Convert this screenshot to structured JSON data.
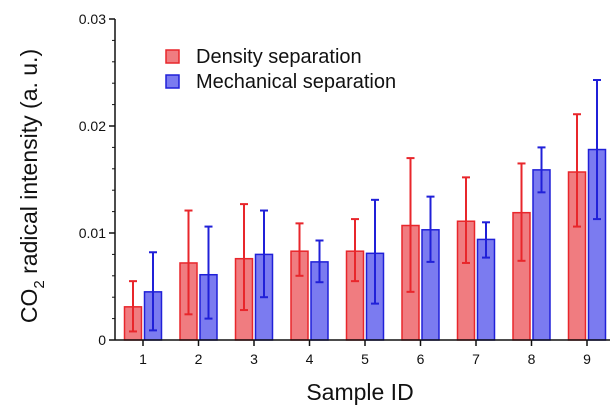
{
  "chart_data": {
    "type": "bar",
    "xlabel": "Sample ID",
    "ylabel": {
      "prefix": "CO",
      "subscript": "2",
      "rest": " radical intensity (a. u.)"
    },
    "ylim": [
      0,
      0.03
    ],
    "yticks": [
      "0",
      "0.01",
      "0.02",
      "0.03"
    ],
    "categories": [
      "1",
      "2",
      "3",
      "4",
      "5",
      "6",
      "7",
      "8",
      "9"
    ],
    "legend_placement": "top-left",
    "grid": false,
    "series": [
      {
        "name": "Density separation",
        "color": "#f07c80",
        "edge_color": "#e8262b",
        "values": [
          0.0031,
          0.0072,
          0.0076,
          0.0083,
          0.0083,
          0.0107,
          0.0111,
          0.0119,
          0.0157
        ],
        "error_high": [
          0.0055,
          0.0121,
          0.0127,
          0.0109,
          0.0113,
          0.017,
          0.0152,
          0.0165,
          0.0211
        ],
        "error_low": [
          0.0008,
          0.0024,
          0.0028,
          0.006,
          0.0055,
          0.0045,
          0.0072,
          0.0074,
          0.0106
        ]
      },
      {
        "name": "Mechanical separation",
        "color": "#7b7bf0",
        "edge_color": "#2020d8",
        "values": [
          0.0045,
          0.0061,
          0.008,
          0.0073,
          0.0081,
          0.0103,
          0.0094,
          0.0159,
          0.0178
        ],
        "error_high": [
          0.0082,
          0.0106,
          0.0121,
          0.0093,
          0.0131,
          0.0134,
          0.011,
          0.018,
          0.0243
        ],
        "error_low": [
          0.0009,
          0.002,
          0.004,
          0.0054,
          0.0034,
          0.0073,
          0.0077,
          0.0138,
          0.0113
        ]
      }
    ]
  }
}
